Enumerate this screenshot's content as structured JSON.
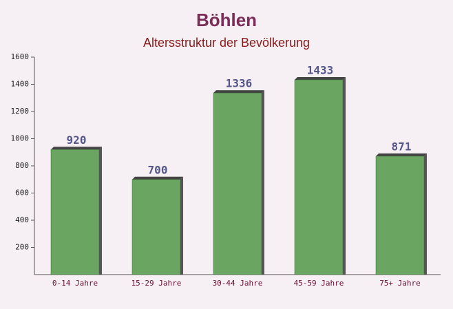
{
  "chart_data": {
    "type": "bar",
    "title": "Böhlen",
    "subtitle": "Altersstruktur der Bevölkerung",
    "categories": [
      "0-14 Jahre",
      "15-29 Jahre",
      "30-44 Jahre",
      "45-59 Jahre",
      "75+ Jahre"
    ],
    "values": [
      920,
      700,
      1336,
      1433,
      871
    ],
    "color": "#6aa562",
    "ylim": [
      0,
      1600
    ],
    "yticks": [
      200,
      400,
      600,
      800,
      1000,
      1200,
      1400,
      1600
    ]
  }
}
